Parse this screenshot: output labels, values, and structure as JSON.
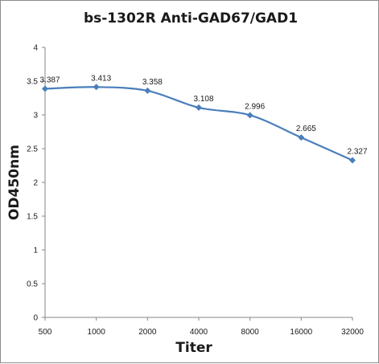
{
  "chart_data": {
    "type": "line",
    "title": "bs-1302R  Anti-GAD67/GAD1",
    "xlabel": "Titer",
    "ylabel": "OD450nm",
    "categories": [
      "500",
      "1000",
      "2000",
      "4000",
      "8000",
      "16000",
      "32000"
    ],
    "series": [
      {
        "values": [
          3.387,
          3.413,
          3.358,
          3.108,
          2.996,
          2.665,
          2.327
        ],
        "labels": [
          "3.387",
          "3.413",
          "3.358",
          "3.108",
          "2.996",
          "2.665",
          "2.327"
        ],
        "color": "#4a7ebb"
      }
    ],
    "ylim": [
      0,
      4
    ],
    "yticks": [
      0,
      0.5,
      1,
      1.5,
      2,
      2.5,
      3,
      3.5,
      4
    ],
    "ytick_labels": [
      "0",
      "0.5",
      "1",
      "1.5",
      "2",
      "2.5",
      "3",
      "3.5",
      "4"
    ],
    "grid": false,
    "legend": "none"
  }
}
